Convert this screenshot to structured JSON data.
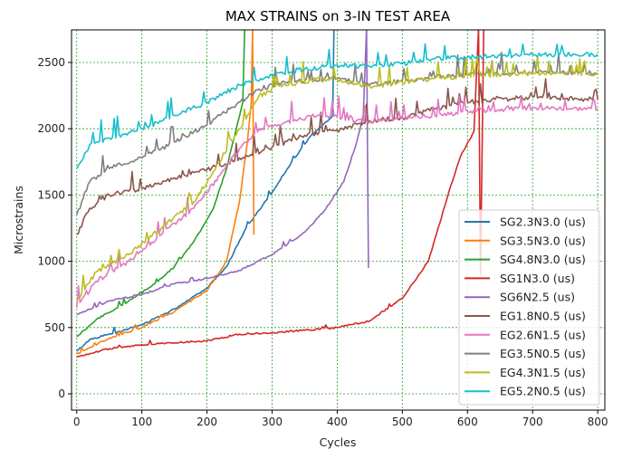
{
  "chart_data": {
    "type": "line",
    "title": "MAX STRAINS on 3-IN TEST AREA",
    "xlabel": "Cycles",
    "ylabel": "Microstrains",
    "xlim": [
      -8,
      811
    ],
    "ylim": [
      -123,
      2746
    ],
    "xticks": [
      0,
      100,
      200,
      300,
      400,
      500,
      600,
      700,
      800
    ],
    "yticks": [
      0,
      500,
      1000,
      1500,
      2000,
      2500
    ],
    "grid": true,
    "grid_color": "#2ca02c",
    "legend_position": "lower-right",
    "series": [
      {
        "name": "SG2.3N3.0 (us)",
        "color": "#1f77b4",
        "x": [
          0,
          20,
          50,
          100,
          150,
          200,
          230,
          260,
          300,
          330,
          360,
          390,
          393,
          395
        ],
        "y": [
          320,
          410,
          450,
          520,
          640,
          800,
          960,
          1250,
          1520,
          1750,
          1950,
          2080,
          2100,
          2760
        ]
      },
      {
        "name": "SG3.5N3.0 (us)",
        "color": "#ff7f0e",
        "x": [
          0,
          50,
          100,
          150,
          200,
          230,
          250,
          262,
          268,
          270,
          272
        ],
        "y": [
          300,
          420,
          500,
          620,
          780,
          1000,
          1450,
          1900,
          2200,
          2760,
          1200
        ]
      },
      {
        "name": "SG4.8N3.0 (us)",
        "color": "#2ca02c",
        "x": [
          0,
          30,
          80,
          120,
          150,
          180,
          210,
          230,
          245,
          255,
          258
        ],
        "y": [
          430,
          560,
          700,
          830,
          960,
          1150,
          1400,
          1700,
          2000,
          2200,
          2760
        ]
      },
      {
        "name": "SG1N3.0 (us)",
        "color": "#d62728",
        "x": [
          0,
          50,
          100,
          200,
          250,
          300,
          350,
          400,
          450,
          500,
          540,
          570,
          590,
          610,
          617,
          620,
          625
        ],
        "y": [
          280,
          340,
          370,
          400,
          450,
          460,
          480,
          500,
          550,
          720,
          1000,
          1500,
          1800,
          1980,
          2760,
          900,
          2760
        ]
      },
      {
        "name": "SG6N2.5 (us)",
        "color": "#9467bd",
        "x": [
          0,
          50,
          100,
          150,
          200,
          250,
          300,
          350,
          380,
          410,
          430,
          440,
          445,
          448
        ],
        "y": [
          600,
          700,
          750,
          830,
          870,
          930,
          1050,
          1220,
          1380,
          1600,
          1900,
          2100,
          2760,
          950
        ]
      },
      {
        "name": "EG1.8N0.5 (us)",
        "color": "#8c564b",
        "x": [
          0,
          20,
          50,
          100,
          150,
          200,
          250,
          300,
          350,
          400,
          450,
          500,
          550,
          600,
          700,
          800
        ],
        "y": [
          1200,
          1400,
          1500,
          1550,
          1630,
          1690,
          1780,
          1860,
          1950,
          1990,
          2060,
          2080,
          2150,
          2200,
          2240,
          2220
        ]
      },
      {
        "name": "EG2.6N1.5 (us)",
        "color": "#e377c2",
        "x": [
          0,
          30,
          80,
          130,
          180,
          220,
          250,
          280,
          320,
          370,
          400,
          450,
          500,
          550,
          600,
          700,
          800
        ],
        "y": [
          650,
          850,
          1000,
          1200,
          1400,
          1650,
          1850,
          2000,
          2050,
          2100,
          2090,
          2050,
          2080,
          2100,
          2130,
          2160,
          2150
        ]
      },
      {
        "name": "EG3.5N0.5 (us)",
        "color": "#7f7f7f",
        "x": [
          0,
          20,
          50,
          100,
          150,
          200,
          250,
          280,
          320,
          400,
          450,
          500,
          550,
          600,
          700,
          800
        ],
        "y": [
          1350,
          1600,
          1700,
          1780,
          1900,
          2030,
          2200,
          2300,
          2350,
          2380,
          2330,
          2360,
          2390,
          2410,
          2430,
          2420
        ]
      },
      {
        "name": "EG4.3N1.5 (us)",
        "color": "#bcbd22",
        "x": [
          0,
          30,
          80,
          130,
          180,
          220,
          250,
          280,
          320,
          380,
          450,
          500,
          550,
          600,
          700,
          800
        ],
        "y": [
          700,
          920,
          1050,
          1250,
          1450,
          1750,
          2000,
          2250,
          2330,
          2380,
          2320,
          2350,
          2380,
          2400,
          2420,
          2410
        ]
      },
      {
        "name": "EG5.2N0.5 (us)",
        "color": "#17becf",
        "x": [
          0,
          20,
          50,
          100,
          150,
          200,
          250,
          300,
          350,
          400,
          450,
          500,
          550,
          600,
          700,
          800
        ],
        "y": [
          1700,
          1880,
          1930,
          2000,
          2100,
          2200,
          2330,
          2400,
          2450,
          2480,
          2470,
          2490,
          2530,
          2540,
          2560,
          2560
        ]
      }
    ]
  }
}
